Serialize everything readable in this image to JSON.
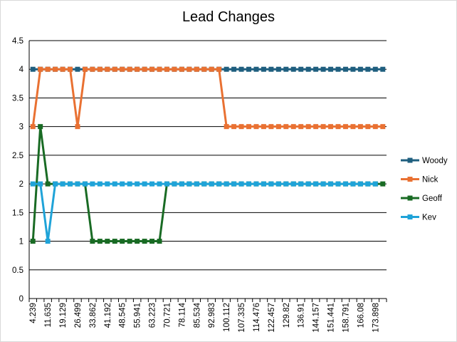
{
  "chart_data": {
    "type": "line",
    "title": "Lead Changes",
    "xlabel": "",
    "ylabel": "",
    "ylim": [
      0,
      4.5
    ],
    "ytick_step": 0.5,
    "yticks": [
      "0",
      "0.5",
      "1",
      "1.5",
      "2",
      "2.5",
      "3",
      "3.5",
      "4",
      "4.5"
    ],
    "grid": "horizontal",
    "legend_position": "right",
    "n_points": 48,
    "x_tick_every": 2,
    "x_tick_labels": [
      "4.239",
      "11.635",
      "19.129",
      "26.499",
      "33.862",
      "41.192",
      "48.545",
      "55.941",
      "63.223",
      "70.721",
      "78.114",
      "85.534",
      "92.983",
      "100.112",
      "107.335",
      "114.476",
      "122.457",
      "129.82",
      "136.91",
      "144.157",
      "151.441",
      "158.791",
      "166.08",
      "173.898"
    ],
    "series": [
      {
        "name": "Woody",
        "color": "#1f5f7f",
        "values": [
          4,
          4,
          4,
          4,
          4,
          4,
          4,
          4,
          4,
          4,
          4,
          4,
          4,
          4,
          4,
          4,
          4,
          4,
          4,
          4,
          4,
          4,
          4,
          4,
          4,
          4,
          4,
          4,
          4,
          4,
          4,
          4,
          4,
          4,
          4,
          4,
          4,
          4,
          4,
          4,
          4,
          4,
          4,
          4,
          4,
          4,
          4,
          4
        ]
      },
      {
        "name": "Nick",
        "color": "#e97132",
        "values": [
          3,
          4,
          4,
          4,
          4,
          4,
          3,
          4,
          4,
          4,
          4,
          4,
          4,
          4,
          4,
          4,
          4,
          4,
          4,
          4,
          4,
          4,
          4,
          4,
          4,
          4,
          3,
          3,
          3,
          3,
          3,
          3,
          3,
          3,
          3,
          3,
          3,
          3,
          3,
          3,
          3,
          3,
          3,
          3,
          3,
          3,
          3,
          3
        ]
      },
      {
        "name": "Geoff",
        "color": "#196b24",
        "values": [
          1,
          3,
          2,
          2,
          2,
          2,
          2,
          2,
          1,
          1,
          1,
          1,
          1,
          1,
          1,
          1,
          1,
          1,
          2,
          2,
          2,
          2,
          2,
          2,
          2,
          2,
          2,
          2,
          2,
          2,
          2,
          2,
          2,
          2,
          2,
          2,
          2,
          2,
          2,
          2,
          2,
          2,
          2,
          2,
          2,
          2,
          2,
          2
        ]
      },
      {
        "name": "Kev",
        "color": "#1fa3d8",
        "values": [
          2,
          2,
          1,
          2,
          2,
          2,
          2,
          2,
          2,
          2,
          2,
          2,
          2,
          2,
          2,
          2,
          2,
          2,
          2,
          2,
          2,
          2,
          2,
          2,
          2,
          2,
          2,
          2,
          2,
          2,
          2,
          2,
          2,
          2,
          2,
          2,
          2,
          2,
          2,
          2,
          2,
          2,
          2,
          2,
          2,
          2,
          2,
          null
        ]
      }
    ]
  }
}
